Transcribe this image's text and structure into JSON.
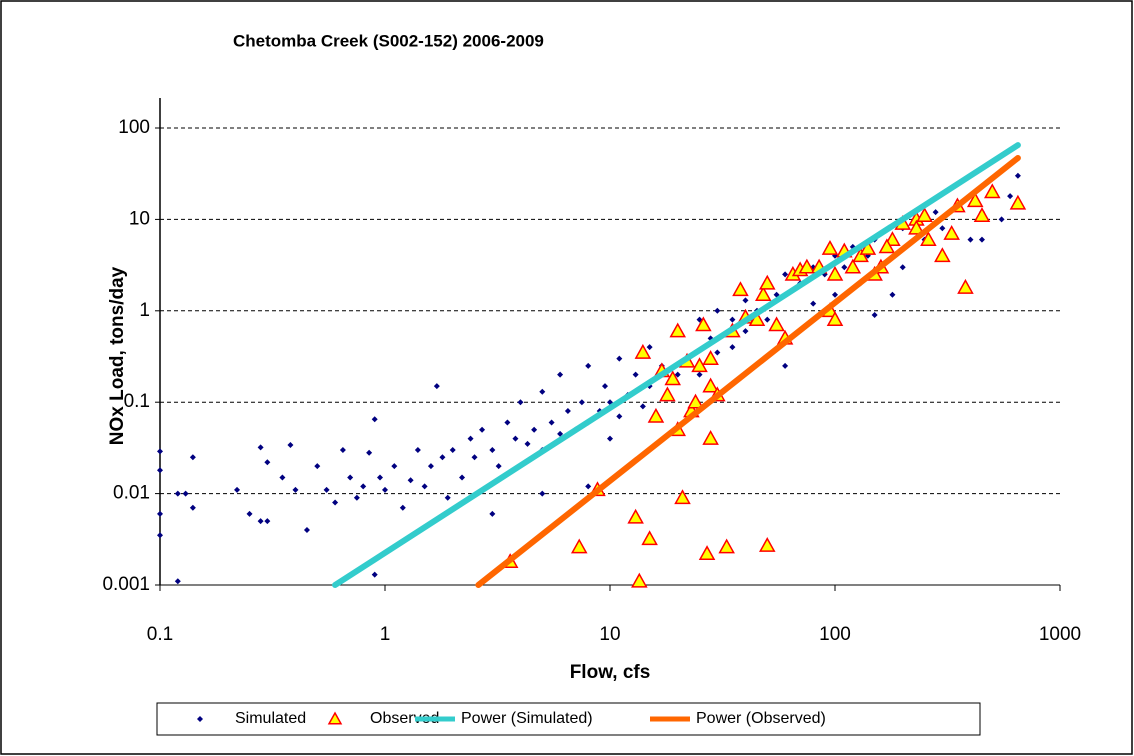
{
  "chart_data": {
    "type": "scatter",
    "title": "Chetomba Creek (S002-152)  2006-2009",
    "x_label": "Flow, cfs",
    "y_label": "NOx Load, tons/day",
    "log_x": true,
    "log_y": true,
    "xlim": [
      0.1,
      1000
    ],
    "xticks": [
      0.1,
      1,
      10,
      100,
      1000
    ],
    "ylim": [
      0.001,
      100
    ],
    "yticks": [
      0.001,
      0.01,
      0.1,
      1,
      10,
      100
    ],
    "grid": true,
    "legend": "bottom",
    "series": [
      {
        "name": "Simulated",
        "color": "#000080",
        "marker": "diamond",
        "x": [
          0.1,
          0.1,
          0.1,
          0.1,
          0.12,
          0.12,
          0.13,
          0.14,
          0.14,
          0.22,
          0.25,
          0.28,
          0.28,
          0.3,
          0.3,
          0.35,
          0.38,
          0.4,
          0.45,
          0.5,
          0.55,
          0.6,
          0.65,
          0.7,
          0.75,
          0.8,
          0.85,
          0.9,
          0.9,
          0.95,
          1.0,
          1.1,
          1.2,
          1.3,
          1.4,
          1.5,
          1.6,
          1.7,
          1.8,
          1.9,
          2.0,
          2.2,
          2.4,
          2.5,
          2.7,
          3,
          3.2,
          3.5,
          3.8,
          4,
          4.3,
          4.6,
          5,
          5,
          5.5,
          6,
          6,
          6.5,
          7,
          7.5,
          8,
          8,
          9,
          9.5,
          10,
          10,
          11,
          11,
          12,
          13,
          14,
          15,
          15,
          17,
          18,
          20,
          20,
          22,
          25,
          25,
          28,
          30,
          30,
          35,
          35,
          40,
          40,
          45,
          50,
          50,
          55,
          60,
          60,
          70,
          70,
          80,
          80,
          90,
          100,
          100,
          110,
          120,
          130,
          140,
          150,
          150,
          170,
          200,
          200,
          230,
          250,
          280,
          300,
          350,
          400,
          450,
          500,
          550,
          600,
          650,
          450,
          180,
          60,
          8,
          5,
          3
        ],
        "values": [
          0.029,
          0.018,
          0.006,
          0.0035,
          0.0011,
          0.01,
          0.01,
          0.025,
          0.007,
          0.011,
          0.006,
          0.005,
          0.032,
          0.005,
          0.022,
          0.015,
          0.034,
          0.011,
          0.004,
          0.02,
          0.011,
          0.008,
          0.03,
          0.015,
          0.009,
          0.012,
          0.028,
          0.065,
          0.0013,
          0.015,
          0.011,
          0.02,
          0.007,
          0.014,
          0.03,
          0.012,
          0.02,
          0.15,
          0.025,
          0.009,
          0.03,
          0.015,
          0.04,
          0.025,
          0.05,
          0.03,
          0.02,
          0.06,
          0.04,
          0.1,
          0.035,
          0.05,
          0.13,
          0.03,
          0.06,
          0.2,
          0.045,
          0.08,
          0.05,
          0.1,
          0.25,
          0.06,
          0.08,
          0.15,
          0.1,
          0.04,
          0.3,
          0.07,
          0.12,
          0.2,
          0.09,
          0.4,
          0.15,
          0.25,
          0.12,
          0.6,
          0.2,
          0.3,
          0.8,
          0.2,
          0.5,
          1.0,
          0.35,
          0.8,
          0.4,
          1.3,
          0.6,
          1.0,
          2.0,
          0.8,
          1.5,
          2.5,
          0.5,
          2.0,
          3.0,
          3.0,
          1.2,
          2.5,
          4,
          1.5,
          3,
          5,
          2,
          4,
          6,
          0.9,
          5,
          8,
          3,
          9,
          6,
          12,
          8,
          14,
          6,
          12,
          20,
          10,
          18,
          30,
          6,
          1.5,
          0.25,
          0.012,
          0.01,
          0.006
        ]
      },
      {
        "name": "Observed",
        "color": "#ff0000",
        "fill": "#ffff00",
        "marker": "triangle",
        "x": [
          3.6,
          7.3,
          8.8,
          13,
          13.5,
          14,
          15,
          16,
          17,
          18,
          19,
          20,
          20,
          21,
          22,
          23,
          24,
          25,
          26,
          27,
          28,
          28,
          28,
          30,
          33,
          35,
          38,
          40,
          45,
          48,
          50,
          50,
          55,
          60,
          65,
          70,
          75,
          85,
          95,
          95,
          100,
          100,
          110,
          120,
          130,
          150,
          160,
          180,
          200,
          230,
          250,
          260,
          300,
          330,
          350,
          380,
          420,
          450,
          500,
          650,
          140,
          170,
          230
        ],
        "values": [
          0.0018,
          0.0026,
          0.011,
          0.0055,
          0.0011,
          0.35,
          0.0032,
          0.07,
          0.22,
          0.12,
          0.18,
          0.6,
          0.05,
          0.009,
          0.28,
          0.08,
          0.1,
          0.25,
          0.7,
          0.0022,
          0.04,
          0.15,
          0.3,
          0.12,
          0.0026,
          0.6,
          1.7,
          0.85,
          0.8,
          1.5,
          2.0,
          0.0027,
          0.7,
          0.5,
          2.5,
          2.8,
          3.0,
          3.0,
          4.8,
          1.0,
          0.8,
          2.5,
          4.5,
          3.0,
          4.0,
          2.5,
          3.0,
          6.0,
          9,
          10,
          11,
          6.0,
          4.0,
          7,
          14,
          1.8,
          16,
          11,
          20,
          15,
          4.8,
          5,
          8
        ]
      },
      {
        "name": "Power (Simulated)",
        "color": "#33cccc",
        "marker": "line",
        "x": [
          0.6,
          650
        ],
        "values": [
          0.001,
          65
        ]
      },
      {
        "name": "Power (Observed)",
        "color": "#ff6600",
        "marker": "line",
        "x": [
          2.6,
          650
        ],
        "values": [
          0.001,
          47
        ]
      }
    ]
  }
}
